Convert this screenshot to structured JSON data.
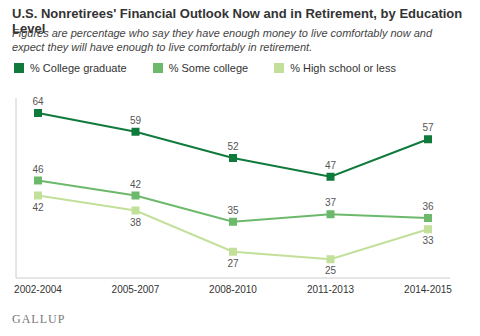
{
  "chart_data": {
    "type": "line",
    "title": "U.S. Nonretirees' Financial Outlook Now and in Retirement, by Education Level",
    "subtitle": "Figures are percentage who say they have enough money to live comfortably now and expect they will have enough to live comfortably in retirement.",
    "categories": [
      "2002-2004",
      "2005-2007",
      "2008-2010",
      "2011-2013",
      "2014-2015"
    ],
    "series": [
      {
        "name": "% College graduate",
        "color": "#107a3c",
        "marker": "square",
        "values": [
          64,
          59,
          52,
          47,
          57
        ]
      },
      {
        "name": "% Some college",
        "color": "#6cb96c",
        "marker": "square",
        "values": [
          46,
          42,
          35,
          37,
          36
        ]
      },
      {
        "name": "% High school or less",
        "color": "#c2e09a",
        "marker": "square",
        "values": [
          42,
          38,
          27,
          25,
          33
        ]
      }
    ],
    "ylim": [
      20,
      68
    ],
    "data_labels": true,
    "tick_labels": "x",
    "legend": "top",
    "source": "GALLUP"
  }
}
